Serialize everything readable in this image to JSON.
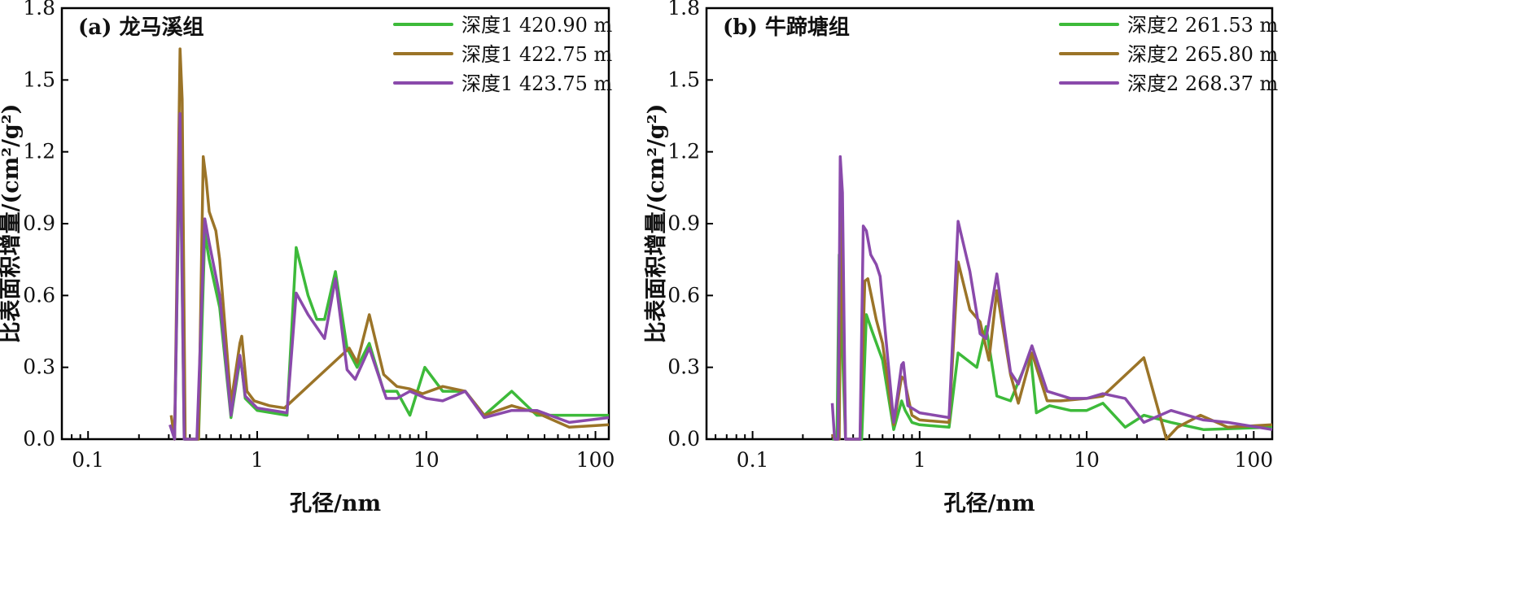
{
  "colors": {
    "green": "#3dba3a",
    "brown": "#9b7428",
    "purple": "#8a4aab"
  },
  "chart_data": [
    {
      "type": "line",
      "title": "(a) 龙马溪组",
      "xlabel": "孔径/nm",
      "ylabel": "比表面积增量/(cm²/g²)",
      "xscale": "log",
      "xlim": [
        0.07,
        120
      ],
      "ylim": [
        0,
        1.8
      ],
      "xticks": [
        0.1,
        1,
        10,
        100
      ],
      "xtick_labels": [
        "0.1",
        "1",
        "10",
        "100"
      ],
      "yticks": [
        0,
        0.3,
        0.6,
        0.9,
        1.2,
        1.5,
        1.8
      ],
      "ytick_labels": [
        "0.0",
        "0.3",
        "0.6",
        "0.9",
        "1.2",
        "1.5",
        "1.8"
      ],
      "legend_position": "top-right",
      "grid": false,
      "series": [
        {
          "name": "深度1 420.90 m",
          "color": "#3dba3a",
          "points": [
            [
              0.31,
              0.05
            ],
            [
              0.325,
              0
            ],
            [
              0.35,
              1.3
            ],
            [
              0.37,
              0
            ],
            [
              0.45,
              0
            ],
            [
              0.49,
              0.86
            ],
            [
              0.52,
              0.75
            ],
            [
              0.6,
              0.55
            ],
            [
              0.7,
              0.09
            ],
            [
              0.79,
              0.33
            ],
            [
              0.81,
              0.3
            ],
            [
              0.85,
              0.17
            ],
            [
              1.0,
              0.12
            ],
            [
              1.5,
              0.1
            ],
            [
              1.7,
              0.8
            ],
            [
              2.0,
              0.6
            ],
            [
              2.25,
              0.5
            ],
            [
              2.5,
              0.5
            ],
            [
              2.9,
              0.7
            ],
            [
              3.4,
              0.38
            ],
            [
              3.9,
              0.3
            ],
            [
              4.6,
              0.4
            ],
            [
              5.6,
              0.2
            ],
            [
              6.7,
              0.2
            ],
            [
              8,
              0.1
            ],
            [
              9.8,
              0.3
            ],
            [
              12.5,
              0.2
            ],
            [
              17,
              0.2
            ],
            [
              22,
              0.1
            ],
            [
              32,
              0.2
            ],
            [
              45,
              0.1
            ],
            [
              120,
              0.1
            ]
          ]
        },
        {
          "name": "深度1 422.75 m",
          "color": "#9b7428",
          "points": [
            [
              0.31,
              0.1
            ],
            [
              0.325,
              0
            ],
            [
              0.35,
              1.63
            ],
            [
              0.36,
              1.42
            ],
            [
              0.375,
              0
            ],
            [
              0.45,
              0
            ],
            [
              0.48,
              1.18
            ],
            [
              0.5,
              1.08
            ],
            [
              0.52,
              0.95
            ],
            [
              0.57,
              0.87
            ],
            [
              0.6,
              0.75
            ],
            [
              0.7,
              0.15
            ],
            [
              0.79,
              0.4
            ],
            [
              0.81,
              0.43
            ],
            [
              0.87,
              0.2
            ],
            [
              0.96,
              0.16
            ],
            [
              1.18,
              0.14
            ],
            [
              1.45,
              0.13
            ],
            [
              3.5,
              0.38
            ],
            [
              3.9,
              0.32
            ],
            [
              4.6,
              0.52
            ],
            [
              5.6,
              0.27
            ],
            [
              6.7,
              0.22
            ],
            [
              8,
              0.21
            ],
            [
              9.5,
              0.19
            ],
            [
              12.5,
              0.22
            ],
            [
              17,
              0.2
            ],
            [
              22,
              0.1
            ],
            [
              32,
              0.14
            ],
            [
              45,
              0.11
            ],
            [
              70,
              0.05
            ],
            [
              120,
              0.06
            ]
          ]
        },
        {
          "name": "深度1 423.75 m",
          "color": "#8a4aab",
          "points": [
            [
              0.305,
              0.06
            ],
            [
              0.325,
              0
            ],
            [
              0.35,
              1.36
            ],
            [
              0.37,
              0
            ],
            [
              0.44,
              0
            ],
            [
              0.49,
              0.92
            ],
            [
              0.52,
              0.82
            ],
            [
              0.6,
              0.6
            ],
            [
              0.7,
              0.1
            ],
            [
              0.79,
              0.35
            ],
            [
              0.81,
              0.3
            ],
            [
              0.85,
              0.18
            ],
            [
              1.0,
              0.13
            ],
            [
              1.5,
              0.11
            ],
            [
              1.7,
              0.61
            ],
            [
              2.0,
              0.52
            ],
            [
              2.5,
              0.42
            ],
            [
              2.9,
              0.67
            ],
            [
              3.4,
              0.29
            ],
            [
              3.8,
              0.25
            ],
            [
              4.6,
              0.38
            ],
            [
              5.8,
              0.17
            ],
            [
              6.7,
              0.17
            ],
            [
              8,
              0.2
            ],
            [
              10,
              0.17
            ],
            [
              12.5,
              0.16
            ],
            [
              17,
              0.2
            ],
            [
              22,
              0.09
            ],
            [
              32,
              0.12
            ],
            [
              45,
              0.12
            ],
            [
              70,
              0.07
            ],
            [
              120,
              0.09
            ]
          ]
        }
      ]
    },
    {
      "type": "line",
      "title": "(b) 牛蹄塘组",
      "xlabel": "孔径/nm",
      "ylabel": "比表面积增量/(cm²/g²)",
      "xscale": "log",
      "xlim": [
        0.053,
        129
      ],
      "ylim": [
        0,
        1.8
      ],
      "xticks": [
        0.1,
        1,
        10,
        100
      ],
      "xtick_labels": [
        "0.1",
        "1",
        "10",
        "100"
      ],
      "yticks": [
        0,
        0.3,
        0.6,
        0.9,
        1.2,
        1.5,
        1.8
      ],
      "ytick_labels": [
        "0.0",
        "0.3",
        "0.6",
        "0.9",
        "1.2",
        "1.5",
        "1.8"
      ],
      "legend_position": "top-right",
      "grid": false,
      "series": [
        {
          "name": "深度2 261.53 m",
          "color": "#3dba3a",
          "points": [
            [
              0.3,
              0.0
            ],
            [
              0.32,
              0
            ],
            [
              0.33,
              0.77
            ],
            [
              0.36,
              0
            ],
            [
              0.45,
              0
            ],
            [
              0.48,
              0.52
            ],
            [
              0.52,
              0.45
            ],
            [
              0.6,
              0.33
            ],
            [
              0.7,
              0.04
            ],
            [
              0.78,
              0.16
            ],
            [
              0.82,
              0.12
            ],
            [
              0.9,
              0.07
            ],
            [
              1.0,
              0.06
            ],
            [
              1.5,
              0.05
            ],
            [
              1.7,
              0.36
            ],
            [
              2.2,
              0.3
            ],
            [
              2.5,
              0.47
            ],
            [
              2.9,
              0.18
            ],
            [
              3.5,
              0.16
            ],
            [
              4.6,
              0.36
            ],
            [
              5.0,
              0.11
            ],
            [
              6,
              0.14
            ],
            [
              8,
              0.12
            ],
            [
              10,
              0.12
            ],
            [
              12.5,
              0.15
            ],
            [
              17,
              0.05
            ],
            [
              22,
              0.1
            ],
            [
              32,
              0.07
            ],
            [
              50,
              0.04
            ],
            [
              129,
              0.05
            ]
          ]
        },
        {
          "name": "深度2 265.80 m",
          "color": "#9b7428",
          "points": [
            [
              0.3,
              0.02
            ],
            [
              0.31,
              0
            ],
            [
              0.33,
              0
            ],
            [
              0.34,
              0.97
            ],
            [
              0.36,
              0
            ],
            [
              0.44,
              0
            ],
            [
              0.47,
              0.66
            ],
            [
              0.49,
              0.67
            ],
            [
              0.55,
              0.5
            ],
            [
              0.6,
              0.4
            ],
            [
              0.7,
              0.06
            ],
            [
              0.78,
              0.26
            ],
            [
              0.81,
              0.25
            ],
            [
              0.9,
              0.1
            ],
            [
              1.0,
              0.08
            ],
            [
              1.5,
              0.07
            ],
            [
              1.7,
              0.74
            ],
            [
              2.0,
              0.54
            ],
            [
              2.3,
              0.49
            ],
            [
              2.6,
              0.33
            ],
            [
              2.9,
              0.62
            ],
            [
              3.5,
              0.27
            ],
            [
              3.9,
              0.15
            ],
            [
              4.7,
              0.36
            ],
            [
              5.8,
              0.16
            ],
            [
              7,
              0.16
            ],
            [
              10,
              0.17
            ],
            [
              12.5,
              0.18
            ],
            [
              22,
              0.34
            ],
            [
              30,
              0.0
            ],
            [
              35,
              0.05
            ],
            [
              48,
              0.1
            ],
            [
              70,
              0.05
            ],
            [
              129,
              0.06
            ]
          ]
        },
        {
          "name": "深度2 268.37 m",
          "color": "#8a4aab",
          "points": [
            [
              0.3,
              0.15
            ],
            [
              0.31,
              0
            ],
            [
              0.325,
              0
            ],
            [
              0.335,
              1.18
            ],
            [
              0.345,
              1.03
            ],
            [
              0.36,
              0
            ],
            [
              0.44,
              0
            ],
            [
              0.46,
              0.89
            ],
            [
              0.48,
              0.87
            ],
            [
              0.51,
              0.77
            ],
            [
              0.55,
              0.73
            ],
            [
              0.58,
              0.68
            ],
            [
              0.7,
              0.07
            ],
            [
              0.78,
              0.31
            ],
            [
              0.8,
              0.32
            ],
            [
              0.85,
              0.14
            ],
            [
              1.0,
              0.11
            ],
            [
              1.5,
              0.09
            ],
            [
              1.7,
              0.91
            ],
            [
              2.0,
              0.7
            ],
            [
              2.3,
              0.44
            ],
            [
              2.5,
              0.42
            ],
            [
              2.9,
              0.69
            ],
            [
              3.5,
              0.28
            ],
            [
              3.9,
              0.23
            ],
            [
              4.7,
              0.39
            ],
            [
              5.8,
              0.2
            ],
            [
              8,
              0.17
            ],
            [
              10,
              0.17
            ],
            [
              12.5,
              0.19
            ],
            [
              17,
              0.17
            ],
            [
              22,
              0.07
            ],
            [
              32,
              0.12
            ],
            [
              50,
              0.08
            ],
            [
              70,
              0.07
            ],
            [
              129,
              0.04
            ]
          ]
        }
      ]
    }
  ]
}
